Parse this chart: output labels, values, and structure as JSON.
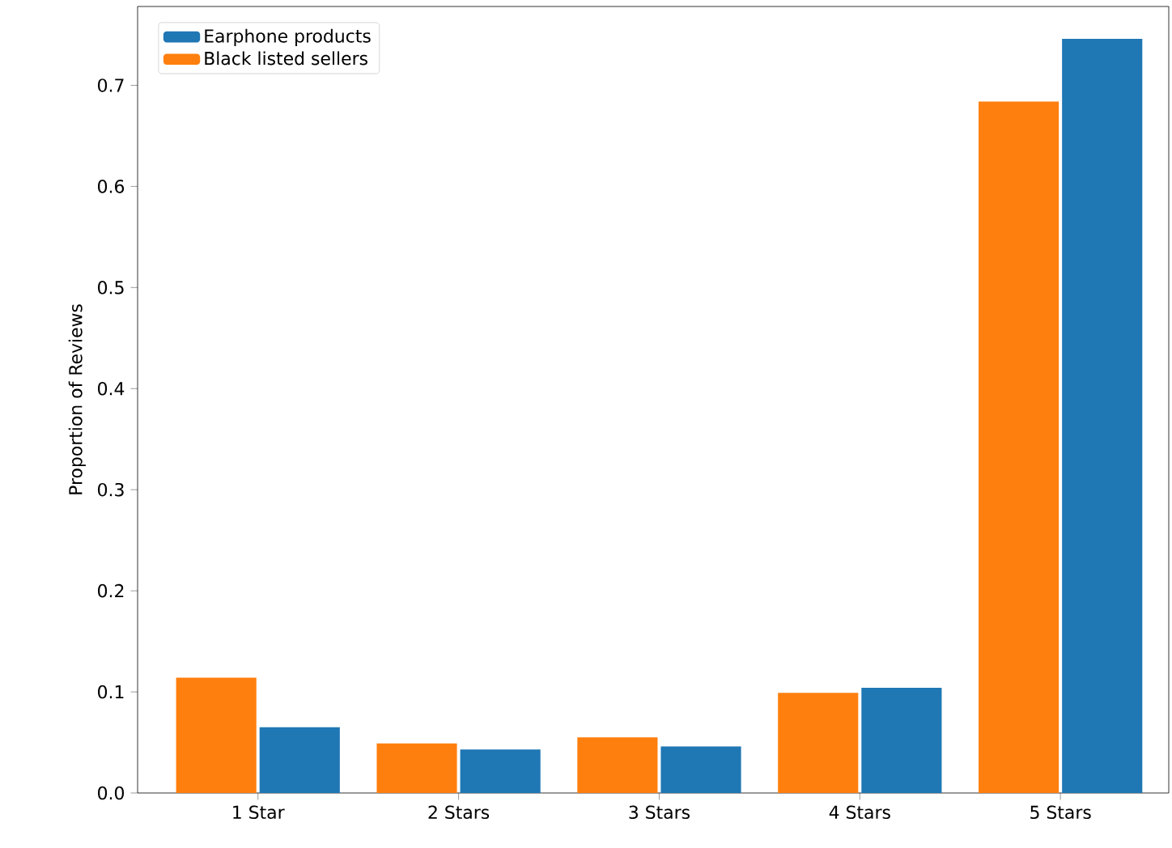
{
  "chart_data": {
    "type": "bar",
    "ylabel": "Proportion of Reviews",
    "categories": [
      "1 Star",
      "2 Stars",
      "3 Stars",
      "4 Stars",
      "5 Stars"
    ],
    "series": [
      {
        "name": "Earphone products",
        "color": "#1f77b4",
        "values": [
          0.065,
          0.043,
          0.046,
          0.104,
          0.746
        ]
      },
      {
        "name": "Black listed sellers",
        "color": "#ff7f0e",
        "values": [
          0.114,
          0.049,
          0.055,
          0.099,
          0.684
        ]
      }
    ],
    "ylim": [
      0,
      0.778
    ],
    "yticks": [
      {
        "value": 0,
        "label": "0.0"
      },
      0.1,
      0.2,
      0.3,
      0.4,
      0.5,
      0.6,
      0.7
    ],
    "legend": "top left",
    "grid": false
  }
}
